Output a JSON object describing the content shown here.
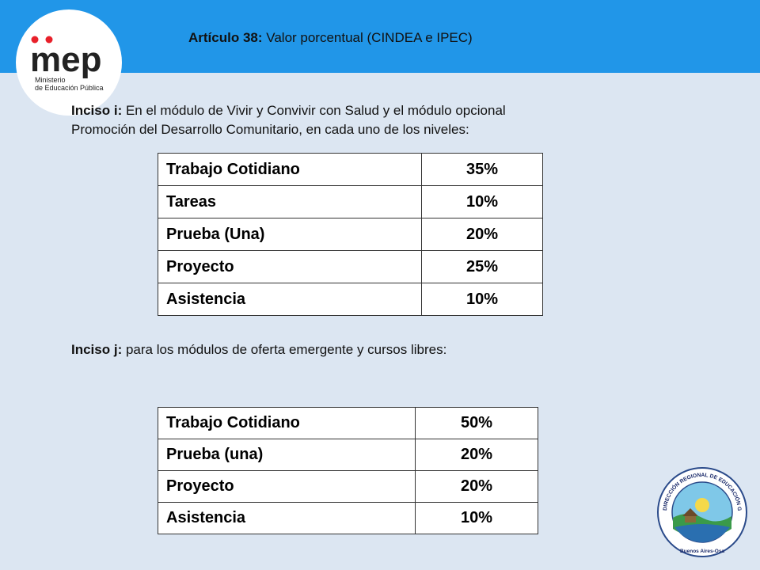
{
  "header": {
    "title_bold": "Artículo 38:",
    "title_rest": " Valor porcentual (CINDEA e IPEC)"
  },
  "logo": {
    "brand": "mep",
    "line1": "Ministerio",
    "line2": "de Educación Pública"
  },
  "inciso_i": {
    "label": "Inciso i:",
    "text_line1": " En el módulo de Vivir y Convivir con Salud y el módulo opcional",
    "text_line2": "Promoción del Desarrollo Comunitario, en cada uno de los niveles:"
  },
  "table1": {
    "rows": [
      {
        "label": "Trabajo Cotidiano",
        "value": "35%"
      },
      {
        "label": "Tareas",
        "value": "10%"
      },
      {
        "label": "Prueba (Una)",
        "value": "20%"
      },
      {
        "label": "Proyecto",
        "value": "25%"
      },
      {
        "label": "Asistencia",
        "value": "10%"
      }
    ]
  },
  "inciso_j": {
    "label": "Inciso j:",
    "text": " para los módulos de oferta emergente y cursos libres:"
  },
  "table2": {
    "rows": [
      {
        "label": "Trabajo Cotidiano",
        "value": "50%"
      },
      {
        "label": "Prueba (una)",
        "value": "20%"
      },
      {
        "label": "Proyecto",
        "value": "20%"
      },
      {
        "label": "Asistencia",
        "value": "10%"
      }
    ]
  },
  "seal": {
    "ring_text": "DIRECCIÓN REGIONAL DE EDUCACIÓN GRANDE DEL TÉRRABA",
    "bottom_text": "Buenos Aires-Osa"
  },
  "colors": {
    "header_bar": "#2196e8",
    "background": "#dce6f2",
    "brand_dark": "#222222",
    "brand_blue": "#1a7fd6",
    "brand_red": "#e8202a"
  }
}
